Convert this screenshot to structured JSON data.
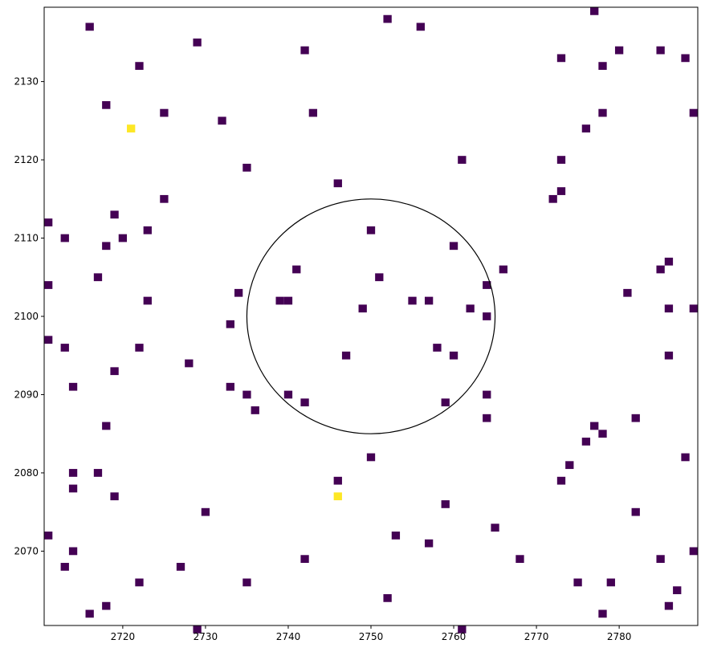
{
  "chart_data": {
    "type": "heatmap",
    "title": "",
    "xlabel": "",
    "ylabel": "",
    "xlim": [
      2710.5,
      2789.5
    ],
    "ylim": [
      2060.5,
      2139.5
    ],
    "xticks": [
      2720,
      2730,
      2740,
      2750,
      2760,
      2770,
      2780
    ],
    "yticks": [
      2070,
      2080,
      2090,
      2100,
      2110,
      2120,
      2130
    ],
    "grid": false,
    "colormap": "viridis",
    "low_color": "#440154",
    "high_color": "#fde725",
    "circle": {
      "center": [
        2750,
        2100
      ],
      "radius": 15,
      "color": "#000000"
    },
    "cells_low": [
      [
        2716,
        2137
      ],
      [
        2729,
        2135
      ],
      [
        2742,
        2134
      ],
      [
        2752,
        2138
      ],
      [
        2756,
        2137
      ],
      [
        2777,
        2139
      ],
      [
        2722,
        2132
      ],
      [
        2773,
        2133
      ],
      [
        2778,
        2132
      ],
      [
        2780,
        2134
      ],
      [
        2785,
        2134
      ],
      [
        2788,
        2133
      ],
      [
        2718,
        2127
      ],
      [
        2725,
        2126
      ],
      [
        2732,
        2125
      ],
      [
        2743,
        2126
      ],
      [
        2776,
        2124
      ],
      [
        2778,
        2126
      ],
      [
        2789,
        2126
      ],
      [
        2735,
        2119
      ],
      [
        2746,
        2117
      ],
      [
        2761,
        2120
      ],
      [
        2773,
        2120
      ],
      [
        2773,
        2116
      ],
      [
        2772,
        2115
      ],
      [
        2725,
        2115
      ],
      [
        2711,
        2112
      ],
      [
        2713,
        2110
      ],
      [
        2719,
        2113
      ],
      [
        2720,
        2110
      ],
      [
        2718,
        2109
      ],
      [
        2723,
        2111
      ],
      [
        2750,
        2111
      ],
      [
        2760,
        2109
      ],
      [
        2717,
        2105
      ],
      [
        2734,
        2103
      ],
      [
        2741,
        2106
      ],
      [
        2751,
        2105
      ],
      [
        2764,
        2104
      ],
      [
        2766,
        2106
      ],
      [
        2781,
        2103
      ],
      [
        2785,
        2106
      ],
      [
        2786,
        2107
      ],
      [
        2711,
        2104
      ],
      [
        2723,
        2102
      ],
      [
        2733,
        2099
      ],
      [
        2739,
        2102
      ],
      [
        2740,
        2102
      ],
      [
        2749,
        2101
      ],
      [
        2755,
        2102
      ],
      [
        2757,
        2102
      ],
      [
        2762,
        2101
      ],
      [
        2764,
        2100
      ],
      [
        2786,
        2101
      ],
      [
        2789,
        2101
      ],
      [
        2711,
        2097
      ],
      [
        2713,
        2096
      ],
      [
        2722,
        2096
      ],
      [
        2728,
        2094
      ],
      [
        2747,
        2095
      ],
      [
        2758,
        2096
      ],
      [
        2760,
        2095
      ],
      [
        2786,
        2095
      ],
      [
        2714,
        2091
      ],
      [
        2719,
        2093
      ],
      [
        2733,
        2091
      ],
      [
        2735,
        2090
      ],
      [
        2736,
        2088
      ],
      [
        2740,
        2090
      ],
      [
        2742,
        2089
      ],
      [
        2759,
        2089
      ],
      [
        2764,
        2090
      ],
      [
        2764,
        2087
      ],
      [
        2718,
        2086
      ],
      [
        2777,
        2086
      ],
      [
        2778,
        2085
      ],
      [
        2776,
        2084
      ],
      [
        2782,
        2087
      ],
      [
        2714,
        2080
      ],
      [
        2717,
        2080
      ],
      [
        2714,
        2078
      ],
      [
        2719,
        2077
      ],
      [
        2746,
        2079
      ],
      [
        2750,
        2082
      ],
      [
        2759,
        2076
      ],
      [
        2773,
        2079
      ],
      [
        2774,
        2081
      ],
      [
        2788,
        2082
      ],
      [
        2711,
        2072
      ],
      [
        2714,
        2070
      ],
      [
        2713,
        2068
      ],
      [
        2730,
        2075
      ],
      [
        2742,
        2069
      ],
      [
        2753,
        2072
      ],
      [
        2757,
        2071
      ],
      [
        2765,
        2073
      ],
      [
        2768,
        2069
      ],
      [
        2782,
        2075
      ],
      [
        2785,
        2069
      ],
      [
        2789,
        2070
      ],
      [
        2716,
        2062
      ],
      [
        2718,
        2063
      ],
      [
        2722,
        2066
      ],
      [
        2727,
        2068
      ],
      [
        2729,
        2060
      ],
      [
        2735,
        2066
      ],
      [
        2752,
        2064
      ],
      [
        2761,
        2060
      ],
      [
        2775,
        2066
      ],
      [
        2778,
        2062
      ],
      [
        2779,
        2066
      ],
      [
        2786,
        2063
      ],
      [
        2787,
        2065
      ]
    ],
    "cells_high": [
      [
        2721,
        2124
      ],
      [
        2746,
        2077
      ]
    ]
  }
}
